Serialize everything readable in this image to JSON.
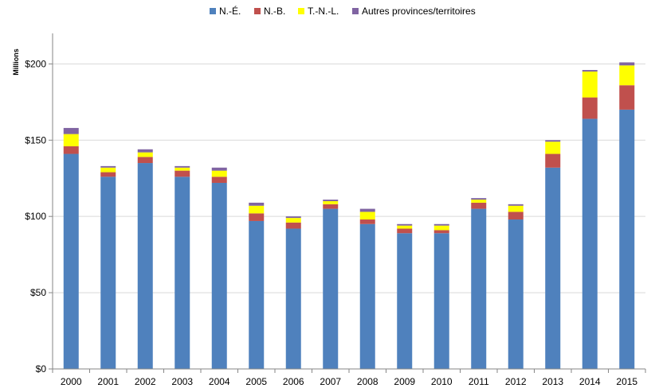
{
  "chart_data": {
    "type": "bar",
    "stacked": true,
    "categories": [
      "2000",
      "2001",
      "2002",
      "2003",
      "2004",
      "2005",
      "2006",
      "2007",
      "2008",
      "2009",
      "2010",
      "2011",
      "2012",
      "2013",
      "2014",
      "2015"
    ],
    "series": [
      {
        "name": "N.-É.",
        "color": "#4f81bd",
        "values": [
          141,
          126,
          135,
          126,
          122,
          97,
          92,
          105,
          95,
          89,
          89,
          105,
          98,
          132,
          164,
          170
        ]
      },
      {
        "name": "N.-B.",
        "color": "#c0504d",
        "values": [
          5,
          3,
          4,
          4,
          4,
          5,
          4,
          3,
          3,
          3,
          2,
          4,
          5,
          9,
          14,
          16
        ]
      },
      {
        "name": "T.-N.-L.",
        "color": "#ffff00",
        "values": [
          8,
          3,
          3,
          2,
          4,
          5,
          3,
          2,
          5,
          2,
          3,
          2,
          4,
          8,
          17,
          13
        ]
      },
      {
        "name": "Autres provinces/territoires",
        "color": "#8064a2",
        "values": [
          4,
          1,
          2,
          1,
          2,
          2,
          1,
          1,
          2,
          1,
          1,
          1,
          1,
          1,
          1,
          2
        ]
      }
    ],
    "y_ticks": [
      {
        "value": 0,
        "label": "$0"
      },
      {
        "value": 50,
        "label": "$50"
      },
      {
        "value": 100,
        "label": "$100"
      },
      {
        "value": 150,
        "label": "$150"
      },
      {
        "value": 200,
        "label": "$200"
      }
    ],
    "ylim": [
      0,
      220
    ],
    "ylabel": "Millions",
    "xlabel": "",
    "title": "",
    "grid": "horizontal",
    "legend_position": "top-center"
  }
}
